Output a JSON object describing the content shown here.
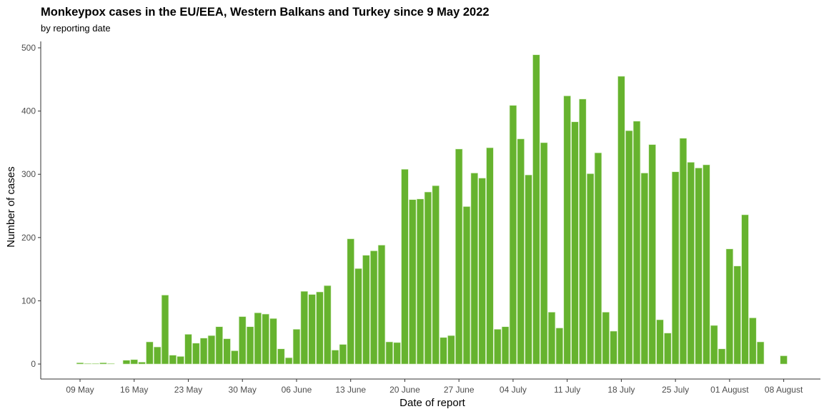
{
  "chart_data": {
    "type": "bar",
    "title": "Monkeypox cases in the EU/EEA, Western Balkans and Turkey since 9 May 2022",
    "subtitle": "by reporting date",
    "xlabel": "Date of report",
    "ylabel": "Number of cases",
    "ylim": [
      0,
      510
    ],
    "yticks": [
      0,
      100,
      200,
      300,
      400,
      500
    ],
    "xticks": [
      {
        "date": "2022-05-09",
        "label": "09 May"
      },
      {
        "date": "2022-05-16",
        "label": "16 May"
      },
      {
        "date": "2022-05-23",
        "label": "23 May"
      },
      {
        "date": "2022-05-30",
        "label": "30 May"
      },
      {
        "date": "2022-06-06",
        "label": "06 June"
      },
      {
        "date": "2022-06-13",
        "label": "13 June"
      },
      {
        "date": "2022-06-20",
        "label": "20 June"
      },
      {
        "date": "2022-06-27",
        "label": "27 June"
      },
      {
        "date": "2022-07-04",
        "label": "04 July"
      },
      {
        "date": "2022-07-11",
        "label": "11 July"
      },
      {
        "date": "2022-07-18",
        "label": "18 July"
      },
      {
        "date": "2022-07-25",
        "label": "25 July"
      },
      {
        "date": "2022-08-01",
        "label": "01 August"
      },
      {
        "date": "2022-08-08",
        "label": "08 August"
      }
    ],
    "x": [
      "2022-05-09",
      "2022-05-10",
      "2022-05-11",
      "2022-05-12",
      "2022-05-13",
      "2022-05-14",
      "2022-05-15",
      "2022-05-16",
      "2022-05-17",
      "2022-05-18",
      "2022-05-19",
      "2022-05-20",
      "2022-05-21",
      "2022-05-22",
      "2022-05-23",
      "2022-05-24",
      "2022-05-25",
      "2022-05-26",
      "2022-05-27",
      "2022-05-28",
      "2022-05-29",
      "2022-05-30",
      "2022-05-31",
      "2022-06-01",
      "2022-06-02",
      "2022-06-03",
      "2022-06-04",
      "2022-06-05",
      "2022-06-06",
      "2022-06-07",
      "2022-06-08",
      "2022-06-09",
      "2022-06-10",
      "2022-06-11",
      "2022-06-12",
      "2022-06-13",
      "2022-06-14",
      "2022-06-15",
      "2022-06-16",
      "2022-06-17",
      "2022-06-18",
      "2022-06-19",
      "2022-06-20",
      "2022-06-21",
      "2022-06-22",
      "2022-06-23",
      "2022-06-24",
      "2022-06-25",
      "2022-06-26",
      "2022-06-27",
      "2022-06-28",
      "2022-06-29",
      "2022-06-30",
      "2022-07-01",
      "2022-07-02",
      "2022-07-03",
      "2022-07-04",
      "2022-07-05",
      "2022-07-06",
      "2022-07-07",
      "2022-07-08",
      "2022-07-09",
      "2022-07-10",
      "2022-07-11",
      "2022-07-12",
      "2022-07-13",
      "2022-07-14",
      "2022-07-15",
      "2022-07-16",
      "2022-07-17",
      "2022-07-18",
      "2022-07-19",
      "2022-07-20",
      "2022-07-21",
      "2022-07-22",
      "2022-07-23",
      "2022-07-24",
      "2022-07-25",
      "2022-07-26",
      "2022-07-27",
      "2022-07-28",
      "2022-07-29",
      "2022-07-30",
      "2022-07-31",
      "2022-08-01",
      "2022-08-02",
      "2022-08-03",
      "2022-08-04",
      "2022-08-05",
      "2022-08-06",
      "2022-08-07",
      "2022-08-08"
    ],
    "values": [
      2,
      1,
      1,
      2,
      1,
      0,
      6,
      7,
      3,
      35,
      27,
      109,
      14,
      12,
      47,
      33,
      41,
      45,
      59,
      40,
      21,
      75,
      59,
      81,
      79,
      72,
      24,
      10,
      55,
      115,
      110,
      114,
      124,
      22,
      31,
      198,
      151,
      172,
      179,
      188,
      35,
      34,
      308,
      260,
      261,
      272,
      282,
      42,
      45,
      340,
      249,
      302,
      294,
      342,
      55,
      59,
      409,
      356,
      299,
      489,
      350,
      82,
      57,
      424,
      383,
      419,
      301,
      334,
      82,
      52,
      455,
      369,
      384,
      302,
      347,
      70,
      49,
      304,
      357,
      319,
      310,
      315,
      61,
      24,
      182,
      155,
      236,
      73,
      35,
      0,
      0,
      13
    ],
    "bar_color": "#66b32e",
    "grid": false,
    "legend": "none"
  }
}
